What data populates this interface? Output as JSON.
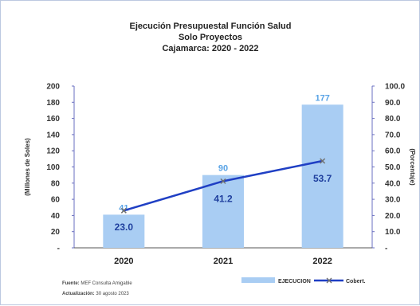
{
  "chart_data": {
    "type": "bar",
    "title_lines": [
      "Ejecución Presupuestal Función Salud",
      "Solo Proyectos",
      "Cajamarca: 2020 - 2022"
    ],
    "categories": [
      "2020",
      "2021",
      "2022"
    ],
    "series": [
      {
        "name": "EJECUCION",
        "kind": "bar",
        "axis": "left",
        "values": [
          41,
          90,
          177
        ],
        "labels": [
          "41",
          "90",
          "177"
        ],
        "color": "#a9cdf3",
        "label_color": "#5aa4e6"
      },
      {
        "name": "Cobert.",
        "kind": "line",
        "axis": "right",
        "values": [
          23.0,
          41.2,
          53.7
        ],
        "labels": [
          "23.0",
          "41.2",
          "53.7"
        ],
        "color": "#1f3fc4",
        "marker_color": "#707070"
      }
    ],
    "ylabel": "(Millones de Soles)",
    "y2label": "(Porcentaje)",
    "ylim": [
      0,
      200
    ],
    "y2lim": [
      0,
      100
    ],
    "yticks": [
      "200",
      "180",
      "160",
      "140",
      "120",
      "100",
      "80",
      "60",
      "40",
      "20",
      "-"
    ],
    "y2ticks": [
      "100.0",
      "90.0",
      "80.0",
      "70.0",
      "60.0",
      "50.0",
      "40.0",
      "30.0",
      "20.0",
      "10.0",
      "-"
    ],
    "legend_position": "bottom-right",
    "grid": false
  },
  "footer": {
    "source_label": "Fuente:",
    "source_text": "MEF Consulta Amigable",
    "updated_label": "Actualización:",
    "updated_text": "30 agosto 2023"
  },
  "colors": {
    "background": "#ffffff",
    "border": "#bcc9e0",
    "axis": "#6a6fc0"
  }
}
